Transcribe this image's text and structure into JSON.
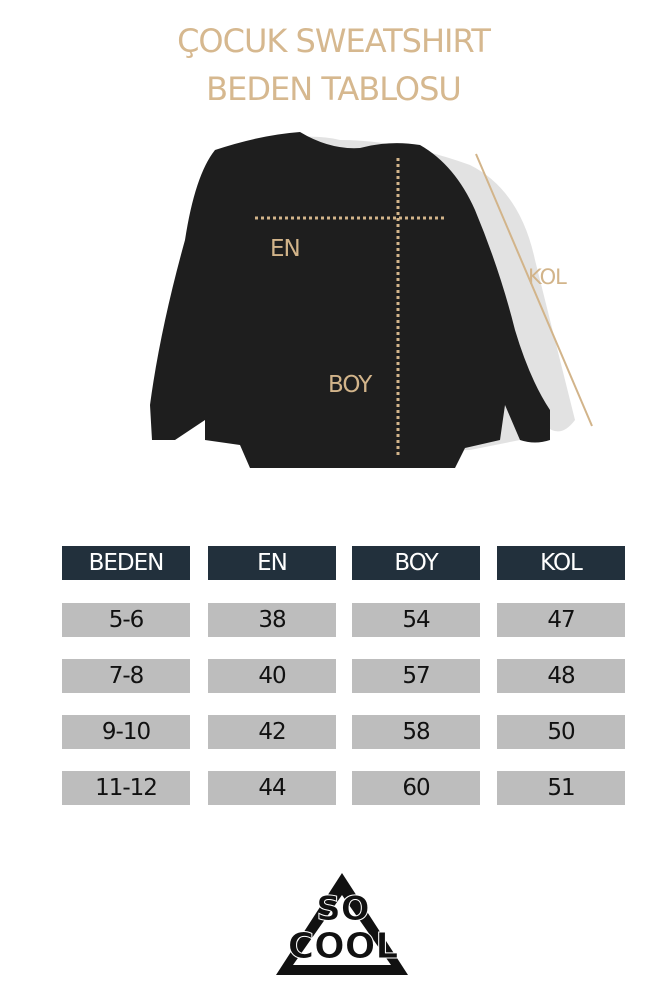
{
  "title": {
    "line1": "ÇOCUK SWEATSHIRT",
    "line2": "BEDEN TABLOSU"
  },
  "measure_labels": {
    "en": "EN",
    "boy": "BOY",
    "kol": "KOL"
  },
  "table": {
    "headers": [
      "BEDEN",
      "EN",
      "BOY",
      "KOL"
    ],
    "rows": [
      [
        "5-6",
        "38",
        "54",
        "47"
      ],
      [
        "7-8",
        "40",
        "57",
        "48"
      ],
      [
        "9-10",
        "42",
        "58",
        "50"
      ],
      [
        "11-12",
        "44",
        "60",
        "51"
      ]
    ]
  },
  "logo": {
    "text": "SO COOL"
  },
  "colors": {
    "accent": "#d6b88f",
    "header_bg": "#22303c",
    "cell_bg": "#bdbdbd"
  }
}
